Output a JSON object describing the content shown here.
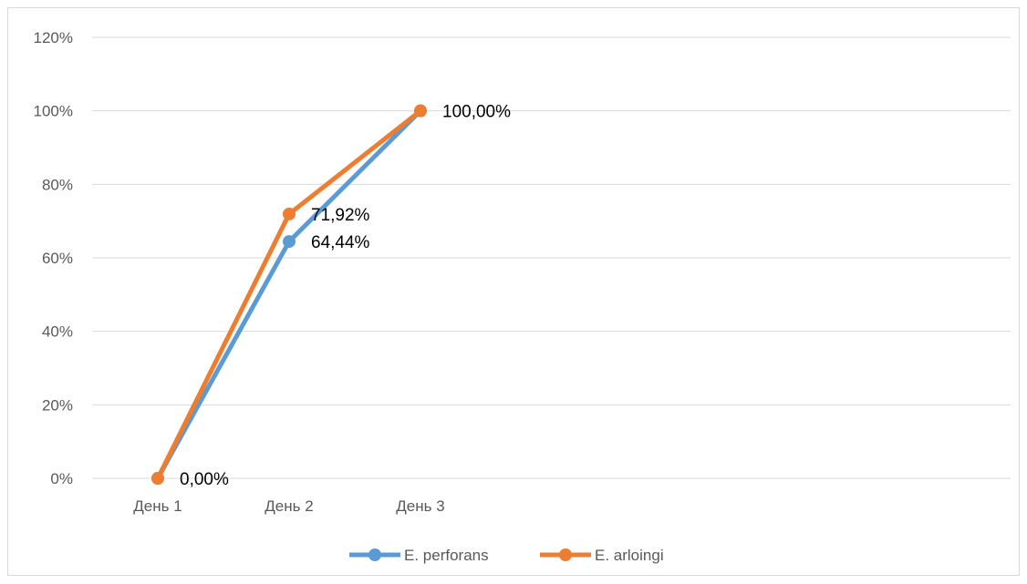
{
  "chart_data": {
    "type": "line",
    "title": "",
    "xlabel": "",
    "ylabel": "",
    "categories": [
      "День 1",
      "День 2",
      "День 3"
    ],
    "ylim": [
      0,
      120
    ],
    "yticks": [
      "0%",
      "20%",
      "40%",
      "60%",
      "80%",
      "100%",
      "120%"
    ],
    "grid": true,
    "legend_position": "bottom",
    "series": [
      {
        "name": "E. perforans",
        "color": "#5B9BD5",
        "values": [
          0,
          64.44,
          100
        ],
        "labels": [
          "",
          "64,44%",
          ""
        ]
      },
      {
        "name": "E. arloingi",
        "color": "#ED7D31",
        "values": [
          0,
          71.92,
          100
        ],
        "labels": [
          "0,00%",
          "71,92%",
          "100,00%"
        ]
      }
    ]
  }
}
